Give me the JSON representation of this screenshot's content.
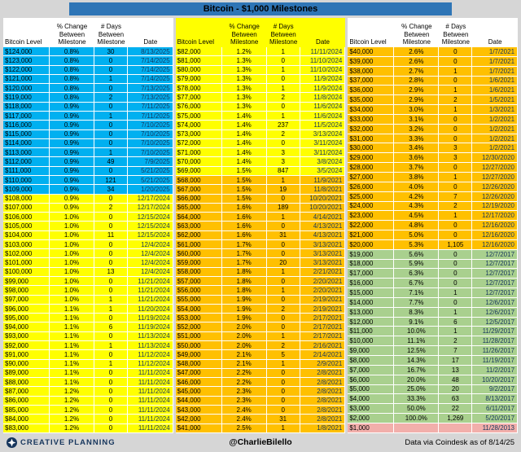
{
  "title": "Bitcoin - $1,000 Milestones",
  "header": {
    "level": "Bitcoin Level",
    "pct": [
      "% Change",
      "Between",
      "Milestone"
    ],
    "days": [
      "# Days",
      "Between",
      "Milestone"
    ],
    "date": "Date"
  },
  "footer": {
    "brand": "CREATIVE PLANNING",
    "handle": "@CharlieBilello",
    "source": "Data via Coindesk as of 8/14/25"
  },
  "colors": {
    "blue": "#00B0F0",
    "yellow": "#FFFF00",
    "orange": "#FFC000",
    "green": "#A9D08E",
    "pink": "#F2AFAB",
    "title_bar": "#2E75B6",
    "page_bg": "#D6D6D6",
    "date_text": "#17365D"
  },
  "chart_data": {
    "type": "table",
    "title": "Bitcoin - $1,000 Milestones",
    "columns": [
      "Bitcoin Level",
      "% Change Between Milestone",
      "# Days Between Milestone",
      "Date"
    ],
    "tables": [
      {
        "header_bg": "#FFFFFF",
        "rows": [
          [
            "$124,000",
            "0.8%",
            "30",
            "8/13/2025",
            "blue"
          ],
          [
            "$123,000",
            "0.8%",
            "0",
            "7/14/2025",
            "blue"
          ],
          [
            "$122,000",
            "0.8%",
            "0",
            "7/14/2025",
            "blue"
          ],
          [
            "$121,000",
            "0.8%",
            "1",
            "7/14/2025",
            "blue"
          ],
          [
            "$120,000",
            "0.8%",
            "0",
            "7/13/2025",
            "blue"
          ],
          [
            "$119,000",
            "0.8%",
            "2",
            "7/13/2025",
            "blue"
          ],
          [
            "$118,000",
            "0.9%",
            "0",
            "7/11/2025",
            "blue"
          ],
          [
            "$117,000",
            "0.9%",
            "1",
            "7/11/2025",
            "blue"
          ],
          [
            "$116,000",
            "0.9%",
            "0",
            "7/10/2025",
            "blue"
          ],
          [
            "$115,000",
            "0.9%",
            "0",
            "7/10/2025",
            "blue"
          ],
          [
            "$114,000",
            "0.9%",
            "0",
            "7/10/2025",
            "blue"
          ],
          [
            "$113,000",
            "0.9%",
            "1",
            "7/10/2025",
            "blue"
          ],
          [
            "$112,000",
            "0.9%",
            "49",
            "7/9/2025",
            "blue"
          ],
          [
            "$111,000",
            "0.9%",
            "0",
            "5/21/2025",
            "blue"
          ],
          [
            "$110,000",
            "0.9%",
            "121",
            "5/21/2025",
            "blue"
          ],
          [
            "$109,000",
            "0.9%",
            "34",
            "1/20/2025",
            "blue"
          ],
          [
            "$108,000",
            "0.9%",
            "0",
            "12/17/2024",
            "yellow"
          ],
          [
            "$107,000",
            "0.9%",
            "2",
            "12/17/2024",
            "yellow"
          ],
          [
            "$106,000",
            "1.0%",
            "0",
            "12/15/2024",
            "yellow"
          ],
          [
            "$105,000",
            "1.0%",
            "0",
            "12/15/2024",
            "yellow"
          ],
          [
            "$104,000",
            "1.0%",
            "11",
            "12/15/2024",
            "yellow"
          ],
          [
            "$103,000",
            "1.0%",
            "0",
            "12/4/2024",
            "yellow"
          ],
          [
            "$102,000",
            "1.0%",
            "0",
            "12/4/2024",
            "yellow"
          ],
          [
            "$101,000",
            "1.0%",
            "0",
            "12/4/2024",
            "yellow"
          ],
          [
            "$100,000",
            "1.0%",
            "13",
            "12/4/2024",
            "yellow"
          ],
          [
            "$99,000",
            "1.0%",
            "0",
            "11/21/2024",
            "yellow"
          ],
          [
            "$98,000",
            "1.0%",
            "0",
            "11/21/2024",
            "yellow"
          ],
          [
            "$97,000",
            "1.0%",
            "1",
            "11/21/2024",
            "yellow"
          ],
          [
            "$96,000",
            "1.1%",
            "1",
            "11/20/2024",
            "yellow"
          ],
          [
            "$95,000",
            "1.1%",
            "0",
            "11/19/2024",
            "yellow"
          ],
          [
            "$94,000",
            "1.1%",
            "6",
            "11/19/2024",
            "yellow"
          ],
          [
            "$93,000",
            "1.1%",
            "0",
            "11/13/2024",
            "yellow"
          ],
          [
            "$92,000",
            "1.1%",
            "1",
            "11/13/2024",
            "yellow"
          ],
          [
            "$91,000",
            "1.1%",
            "0",
            "11/12/2024",
            "yellow"
          ],
          [
            "$90,000",
            "1.1%",
            "1",
            "11/12/2024",
            "yellow"
          ],
          [
            "$89,000",
            "1.1%",
            "0",
            "11/11/2024",
            "yellow"
          ],
          [
            "$88,000",
            "1.1%",
            "0",
            "11/11/2024",
            "yellow"
          ],
          [
            "$87,000",
            "1.2%",
            "0",
            "11/11/2024",
            "yellow"
          ],
          [
            "$86,000",
            "1.2%",
            "0",
            "11/11/2024",
            "yellow"
          ],
          [
            "$85,000",
            "1.2%",
            "0",
            "11/11/2024",
            "yellow"
          ],
          [
            "$84,000",
            "1.2%",
            "0",
            "11/11/2024",
            "yellow"
          ],
          [
            "$83,000",
            "1.2%",
            "0",
            "11/11/2024",
            "yellow"
          ]
        ]
      },
      {
        "header_bg": "#FFFF00",
        "rows": [
          [
            "$82,000",
            "1.2%",
            "1",
            "11/11/2024",
            "yellow"
          ],
          [
            "$81,000",
            "1.3%",
            "0",
            "11/10/2024",
            "yellow"
          ],
          [
            "$80,000",
            "1.3%",
            "1",
            "11/10/2024",
            "yellow"
          ],
          [
            "$79,000",
            "1.3%",
            "0",
            "11/9/2024",
            "yellow"
          ],
          [
            "$78,000",
            "1.3%",
            "1",
            "11/9/2024",
            "yellow"
          ],
          [
            "$77,000",
            "1.3%",
            "2",
            "11/8/2024",
            "yellow"
          ],
          [
            "$76,000",
            "1.3%",
            "0",
            "11/6/2024",
            "yellow"
          ],
          [
            "$75,000",
            "1.4%",
            "1",
            "11/6/2024",
            "yellow"
          ],
          [
            "$74,000",
            "1.4%",
            "237",
            "11/5/2024",
            "yellow"
          ],
          [
            "$73,000",
            "1.4%",
            "2",
            "3/13/2024",
            "yellow"
          ],
          [
            "$72,000",
            "1.4%",
            "0",
            "3/11/2024",
            "yellow"
          ],
          [
            "$71,000",
            "1.4%",
            "3",
            "3/11/2024",
            "yellow"
          ],
          [
            "$70,000",
            "1.4%",
            "3",
            "3/8/2024",
            "yellow"
          ],
          [
            "$69,000",
            "1.5%",
            "847",
            "3/5/2024",
            "yellow"
          ],
          [
            "$68,000",
            "1.5%",
            "1",
            "11/9/2021",
            "orange"
          ],
          [
            "$67,000",
            "1.5%",
            "19",
            "11/8/2021",
            "orange"
          ],
          [
            "$66,000",
            "1.5%",
            "0",
            "10/20/2021",
            "orange"
          ],
          [
            "$65,000",
            "1.6%",
            "189",
            "10/20/2021",
            "orange"
          ],
          [
            "$64,000",
            "1.6%",
            "1",
            "4/14/2021",
            "orange"
          ],
          [
            "$63,000",
            "1.6%",
            "0",
            "4/13/2021",
            "orange"
          ],
          [
            "$62,000",
            "1.6%",
            "31",
            "4/13/2021",
            "orange"
          ],
          [
            "$61,000",
            "1.7%",
            "0",
            "3/13/2021",
            "orange"
          ],
          [
            "$60,000",
            "1.7%",
            "0",
            "3/13/2021",
            "orange"
          ],
          [
            "$59,000",
            "1.7%",
            "20",
            "3/13/2021",
            "orange"
          ],
          [
            "$58,000",
            "1.8%",
            "1",
            "2/21/2021",
            "orange"
          ],
          [
            "$57,000",
            "1.8%",
            "0",
            "2/20/2021",
            "orange"
          ],
          [
            "$56,000",
            "1.8%",
            "1",
            "2/20/2021",
            "orange"
          ],
          [
            "$55,000",
            "1.9%",
            "0",
            "2/19/2021",
            "orange"
          ],
          [
            "$54,000",
            "1.9%",
            "2",
            "2/19/2021",
            "orange"
          ],
          [
            "$53,000",
            "1.9%",
            "0",
            "2/17/2021",
            "orange"
          ],
          [
            "$52,000",
            "2.0%",
            "0",
            "2/17/2021",
            "orange"
          ],
          [
            "$51,000",
            "2.0%",
            "1",
            "2/17/2021",
            "orange"
          ],
          [
            "$50,000",
            "2.0%",
            "2",
            "2/16/2021",
            "orange"
          ],
          [
            "$49,000",
            "2.1%",
            "5",
            "2/14/2021",
            "orange"
          ],
          [
            "$48,000",
            "2.1%",
            "1",
            "2/9/2021",
            "orange"
          ],
          [
            "$47,000",
            "2.2%",
            "0",
            "2/8/2021",
            "orange"
          ],
          [
            "$46,000",
            "2.2%",
            "0",
            "2/8/2021",
            "orange"
          ],
          [
            "$45,000",
            "2.3%",
            "0",
            "2/8/2021",
            "orange"
          ],
          [
            "$44,000",
            "2.3%",
            "0",
            "2/8/2021",
            "orange"
          ],
          [
            "$43,000",
            "2.4%",
            "0",
            "2/8/2021",
            "orange"
          ],
          [
            "$42,000",
            "2.4%",
            "31",
            "2/8/2021",
            "orange"
          ],
          [
            "$41,000",
            "2.5%",
            "1",
            "1/8/2021",
            "orange"
          ]
        ]
      },
      {
        "header_bg": "#FFFFFF",
        "rows": [
          [
            "$40,000",
            "2.6%",
            "0",
            "1/7/2021",
            "orange"
          ],
          [
            "$39,000",
            "2.6%",
            "0",
            "1/7/2021",
            "orange"
          ],
          [
            "$38,000",
            "2.7%",
            "1",
            "1/7/2021",
            "orange"
          ],
          [
            "$37,000",
            "2.8%",
            "0",
            "1/6/2021",
            "orange"
          ],
          [
            "$36,000",
            "2.9%",
            "1",
            "1/6/2021",
            "orange"
          ],
          [
            "$35,000",
            "2.9%",
            "2",
            "1/5/2021",
            "orange"
          ],
          [
            "$34,000",
            "3.0%",
            "1",
            "1/3/2021",
            "orange"
          ],
          [
            "$33,000",
            "3.1%",
            "0",
            "1/2/2021",
            "orange"
          ],
          [
            "$32,000",
            "3.2%",
            "0",
            "1/2/2021",
            "orange"
          ],
          [
            "$31,000",
            "3.3%",
            "0",
            "1/2/2021",
            "orange"
          ],
          [
            "$30,000",
            "3.4%",
            "3",
            "1/2/2021",
            "orange"
          ],
          [
            "$29,000",
            "3.6%",
            "3",
            "12/30/2020",
            "orange"
          ],
          [
            "$28,000",
            "3.7%",
            "0",
            "12/27/2020",
            "orange"
          ],
          [
            "$27,000",
            "3.8%",
            "1",
            "12/27/2020",
            "orange"
          ],
          [
            "$26,000",
            "4.0%",
            "0",
            "12/26/2020",
            "orange"
          ],
          [
            "$25,000",
            "4.2%",
            "7",
            "12/26/2020",
            "orange"
          ],
          [
            "$24,000",
            "4.3%",
            "2",
            "12/19/2020",
            "orange"
          ],
          [
            "$23,000",
            "4.5%",
            "1",
            "12/17/2020",
            "orange"
          ],
          [
            "$22,000",
            "4.8%",
            "0",
            "12/16/2020",
            "orange"
          ],
          [
            "$21,000",
            "5.0%",
            "0",
            "12/16/2020",
            "orange"
          ],
          [
            "$20,000",
            "5.3%",
            "1,105",
            "12/16/2020",
            "orange"
          ],
          [
            "$19,000",
            "5.6%",
            "0",
            "12/7/2017",
            "green"
          ],
          [
            "$18,000",
            "5.9%",
            "0",
            "12/7/2017",
            "green"
          ],
          [
            "$17,000",
            "6.3%",
            "0",
            "12/7/2017",
            "green"
          ],
          [
            "$16,000",
            "6.7%",
            "0",
            "12/7/2017",
            "green"
          ],
          [
            "$15,000",
            "7.1%",
            "1",
            "12/7/2017",
            "green"
          ],
          [
            "$14,000",
            "7.7%",
            "0",
            "12/6/2017",
            "green"
          ],
          [
            "$13,000",
            "8.3%",
            "1",
            "12/6/2017",
            "green"
          ],
          [
            "$12,000",
            "9.1%",
            "6",
            "12/5/2017",
            "green"
          ],
          [
            "$11,000",
            "10.0%",
            "1",
            "11/29/2017",
            "green"
          ],
          [
            "$10,000",
            "11.1%",
            "2",
            "11/28/2017",
            "green"
          ],
          [
            "$9,000",
            "12.5%",
            "7",
            "11/26/2017",
            "green"
          ],
          [
            "$8,000",
            "14.3%",
            "17",
            "11/19/2017",
            "green"
          ],
          [
            "$7,000",
            "16.7%",
            "13",
            "11/2/2017",
            "green"
          ],
          [
            "$6,000",
            "20.0%",
            "48",
            "10/20/2017",
            "green"
          ],
          [
            "$5,000",
            "25.0%",
            "20",
            "9/2/2017",
            "green"
          ],
          [
            "$4,000",
            "33.3%",
            "63",
            "8/13/2017",
            "green"
          ],
          [
            "$3,000",
            "50.0%",
            "22",
            "6/11/2017",
            "green"
          ],
          [
            "$2,000",
            "100.0%",
            "1,269",
            "5/20/2017",
            "green"
          ],
          [
            "$1,000",
            "",
            "",
            "11/28/2013",
            "pink"
          ]
        ]
      }
    ]
  }
}
